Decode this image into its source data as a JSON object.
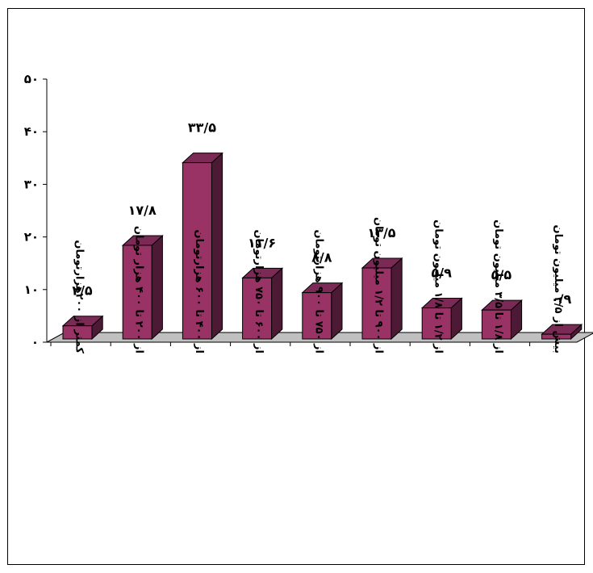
{
  "chart_data": {
    "type": "bar",
    "title": "",
    "xlabel": "",
    "ylabel": "",
    "ylim": [
      0,
      50
    ],
    "yticks": [
      0,
      10,
      20,
      30,
      40,
      50
    ],
    "ytick_labels": [
      "٠",
      "١٠",
      "٢٠",
      "٣٠",
      "۴٠",
      "۵٠"
    ],
    "grid": false,
    "style": "3d-column",
    "colors": {
      "bar_front": "#993366",
      "bar_top": "#7a2a55",
      "bar_side": "#4d1a36",
      "floor": "#c0c0c0"
    },
    "categories": [
      "کمتر از ٢٠٠هزارتومان",
      "از ٢٠٠ تا ۴٠٠ هزار تومان",
      "از ۴٠٠ تا ۶٠٠ هزارتومان",
      "از ۶٠٠ تا ٧۵٠ هزارتومان",
      "از ٧۵٠ تا ٩٠٠ هزارتومان",
      "از ٩٠٠ تا ١/٢ میلیون تومان",
      "از ١/٢ تا ١/٨ میلیون تومان",
      "از ١/٨ تا ٣/۵ میلیون تومان",
      "بیش از ٣/۵ میلیون تومان"
    ],
    "values": [
      2.5,
      17.8,
      33.5,
      11.6,
      8.8,
      13.5,
      5.9,
      5.5,
      0.9
    ],
    "data_labels": [
      "٢/۵",
      "١٧/٨",
      "٣٣/۵",
      "١١/۶",
      "٨/٨",
      "١٣/۵",
      "۵/٩",
      "۵/۵",
      "٠/٩"
    ]
  }
}
